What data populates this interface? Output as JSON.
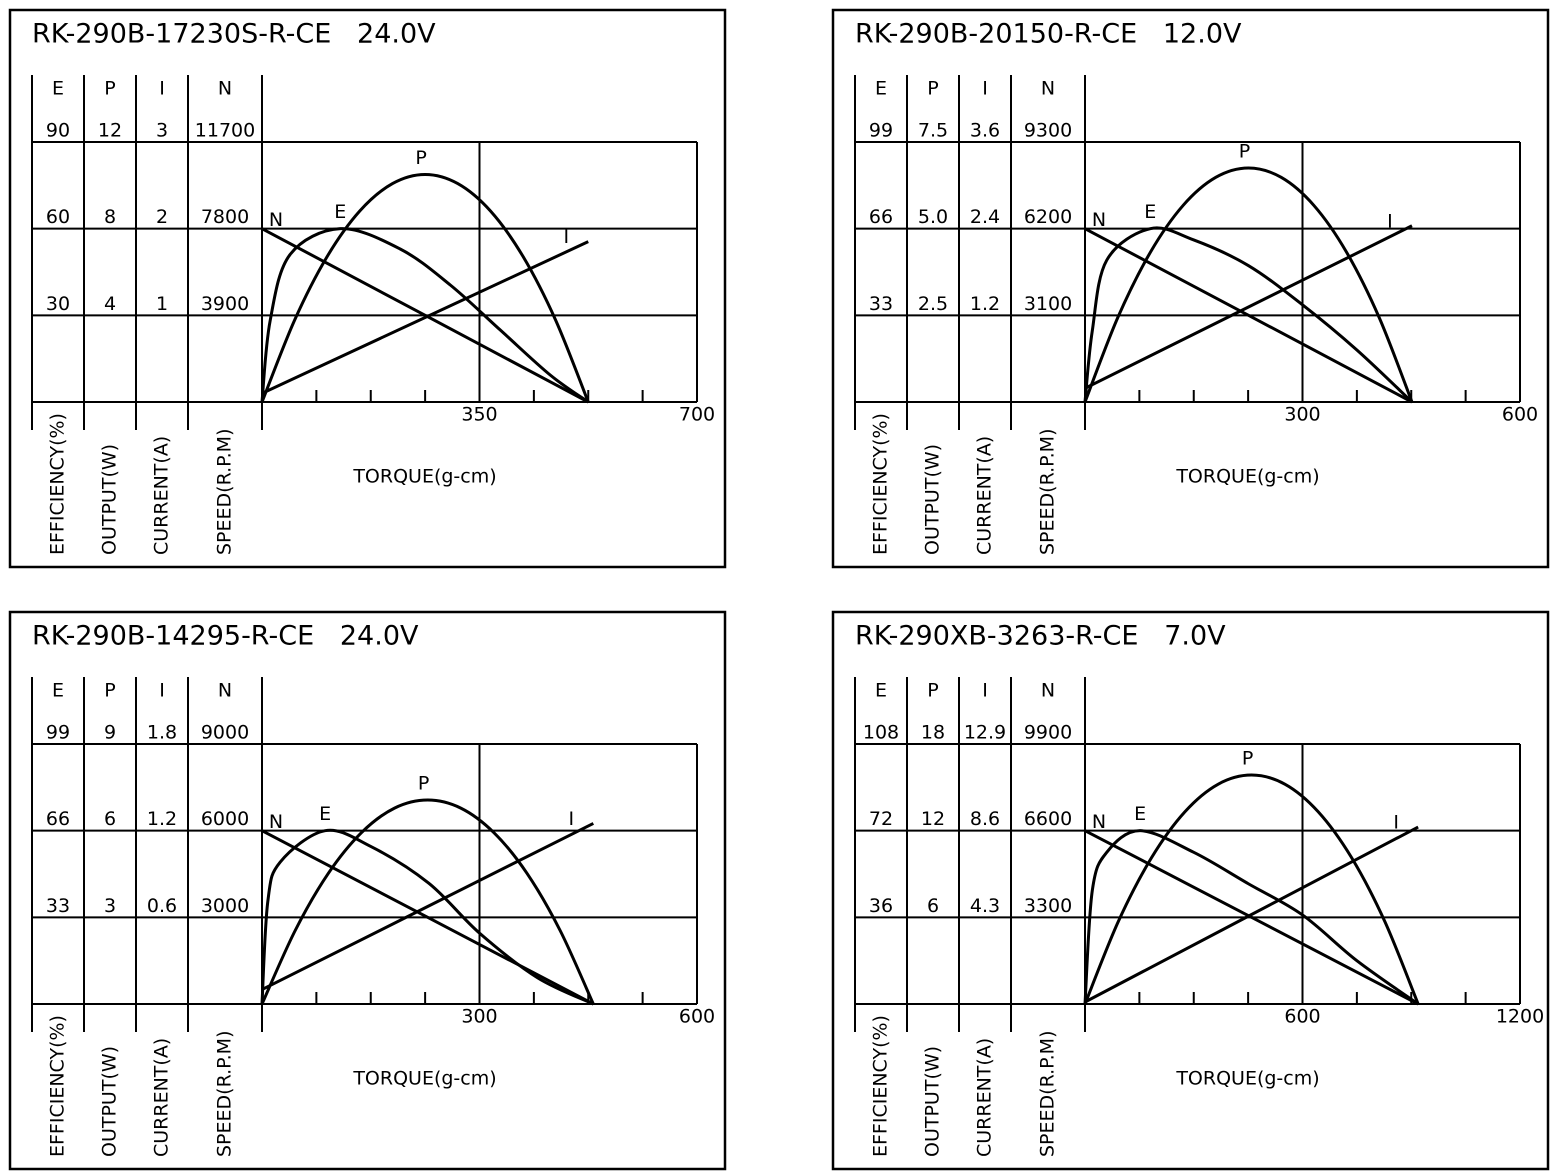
{
  "chart_data": [
    {
      "type": "line",
      "title": "RK-290B-17230S-R-CE   24.0V",
      "xlabel": "TORQUE(g-cm)",
      "xlim": [
        0,
        700
      ],
      "xticks": [
        350,
        700
      ],
      "axes": [
        {
          "name": "E",
          "label": "EFFICIENCY(%)",
          "ylim": [
            0,
            90
          ],
          "yticks": [
            30,
            60,
            90
          ]
        },
        {
          "name": "P",
          "label": "OUTPUT(W)",
          "ylim": [
            0,
            12
          ],
          "yticks": [
            4,
            8,
            12
          ]
        },
        {
          "name": "I",
          "label": "CURRENT(A)",
          "ylim": [
            0,
            3
          ],
          "yticks": [
            1,
            2,
            3
          ]
        },
        {
          "name": "N",
          "label": "SPEED(R.P.M)",
          "ylim": [
            0,
            11700
          ],
          "yticks": [
            3900,
            7800,
            11700
          ]
        }
      ],
      "series": [
        {
          "name": "N",
          "x": [
            0,
            525
          ],
          "values": [
            7800,
            0
          ]
        },
        {
          "name": "I",
          "x": [
            0,
            525
          ],
          "values": [
            0.1,
            1.85
          ]
        },
        {
          "name": "E",
          "x": [
            0,
            13,
            45,
            126,
            222,
            303,
            383,
            464,
            525
          ],
          "values": [
            0,
            28,
            51,
            60,
            53,
            40.5,
            25,
            9.3,
            0
          ]
        },
        {
          "name": "P",
          "x": [
            0,
            52.5,
            105,
            157.5,
            210,
            262.5,
            315,
            367.5,
            420,
            472.5,
            525
          ],
          "values": [
            0,
            3.78,
            6.72,
            8.82,
            10.08,
            10.5,
            10.08,
            8.82,
            6.72,
            3.78,
            0
          ]
        }
      ]
    },
    {
      "type": "line",
      "title": "RK-290B-20150-R-CE   12.0V",
      "xlabel": "TORQUE(g-cm)",
      "xlim": [
        0,
        600
      ],
      "xticks": [
        300,
        600
      ],
      "axes": [
        {
          "name": "E",
          "label": "EFFICIENCY(%)",
          "ylim": [
            0,
            99
          ],
          "yticks": [
            33,
            66,
            99
          ]
        },
        {
          "name": "P",
          "label": "OUTPUT(W)",
          "ylim": [
            0,
            7.5
          ],
          "yticks": [
            2.5,
            {
              "value": 5,
              "label": "5.0"
            },
            7.5
          ]
        },
        {
          "name": "I",
          "label": "CURRENT(A)",
          "ylim": [
            0,
            3.6
          ],
          "yticks": [
            1.2,
            2.4,
            3.6
          ]
        },
        {
          "name": "N",
          "label": "SPEED(R.P.M)",
          "ylim": [
            0,
            9300
          ],
          "yticks": [
            3100,
            6200,
            9300
          ]
        }
      ],
      "series": [
        {
          "name": "N",
          "x": [
            0,
            451
          ],
          "values": [
            6200,
            0
          ]
        },
        {
          "name": "I",
          "x": [
            0,
            451
          ],
          "values": [
            0.19,
            2.44
          ]
        },
        {
          "name": "E",
          "x": [
            0,
            10,
            30,
            90,
            150,
            225,
            300,
            375,
            451
          ],
          "values": [
            0,
            27,
            54,
            66,
            61.7,
            52,
            37,
            19.8,
            0
          ]
        },
        {
          "name": "P",
          "x": [
            0,
            45.1,
            90.2,
            135.3,
            180.4,
            225.5,
            270.6,
            315.7,
            360.8,
            405.9,
            451
          ],
          "values": [
            0,
            2.43,
            4.32,
            5.67,
            6.48,
            6.75,
            6.48,
            5.67,
            4.32,
            2.43,
            0
          ]
        }
      ]
    },
    {
      "type": "line",
      "title": "RK-290B-14295-R-CE   24.0V",
      "xlabel": "TORQUE(g-cm)",
      "xlim": [
        0,
        600
      ],
      "xticks": [
        300,
        600
      ],
      "axes": [
        {
          "name": "E",
          "label": "EFFICIENCY(%)",
          "ylim": [
            0,
            99
          ],
          "yticks": [
            33,
            66,
            99
          ]
        },
        {
          "name": "P",
          "label": "OUTPUT(W)",
          "ylim": [
            0,
            9
          ],
          "yticks": [
            3,
            6,
            9
          ]
        },
        {
          "name": "I",
          "label": "CURRENT(A)",
          "ylim": [
            0,
            1.8
          ],
          "yticks": [
            0.6,
            1.2,
            1.8
          ]
        },
        {
          "name": "N",
          "label": "SPEED(R.P.M)",
          "ylim": [
            0,
            9000
          ],
          "yticks": [
            3000,
            6000,
            9000
          ]
        }
      ],
      "series": [
        {
          "name": "N",
          "x": [
            0,
            457
          ],
          "values": [
            6000,
            0
          ]
        },
        {
          "name": "I",
          "x": [
            0,
            457
          ],
          "values": [
            0.1,
            1.25
          ]
        },
        {
          "name": "E",
          "x": [
            0,
            8,
            25,
            87,
            150,
            230,
            300,
            380,
            457
          ],
          "values": [
            0,
            39,
            54,
            66,
            60,
            46,
            27,
            10,
            0
          ]
        },
        {
          "name": "P",
          "x": [
            0,
            45.7,
            91.4,
            137.1,
            182.8,
            228.5,
            274.2,
            319.9,
            365.6,
            411.3,
            457
          ],
          "values": [
            0,
            2.54,
            4.52,
            5.93,
            6.78,
            7.06,
            6.78,
            5.93,
            4.52,
            2.54,
            0
          ]
        }
      ]
    },
    {
      "type": "line",
      "title": "RK-290XB-3263-R-CE   7.0V",
      "xlabel": "TORQUE(g-cm)",
      "xlim": [
        0,
        1200
      ],
      "xticks": [
        600,
        1200
      ],
      "axes": [
        {
          "name": "E",
          "label": "EFFICIENCY(%)",
          "ylim": [
            0,
            108
          ],
          "yticks": [
            36,
            72,
            108
          ]
        },
        {
          "name": "P",
          "label": "OUTPUT(W)",
          "ylim": [
            0,
            18
          ],
          "yticks": [
            6,
            12,
            18
          ]
        },
        {
          "name": "I",
          "label": "CURRENT(A)",
          "ylim": [
            0,
            12.9
          ],
          "yticks": [
            4.3,
            8.6,
            12.9
          ]
        },
        {
          "name": "N",
          "label": "SPEED(R.P.M)",
          "ylim": [
            0,
            9900
          ],
          "yticks": [
            3300,
            6600,
            9900
          ]
        }
      ],
      "series": [
        {
          "name": "N",
          "x": [
            0,
            919
          ],
          "values": [
            6600,
            0
          ]
        },
        {
          "name": "I",
          "x": [
            0,
            919
          ],
          "values": [
            0.1,
            8.78
          ]
        },
        {
          "name": "E",
          "x": [
            0,
            20,
            60,
            152,
            300,
            450,
            600,
            750,
            919
          ],
          "values": [
            0,
            47,
            63,
            72,
            63,
            50,
            37,
            18,
            0
          ]
        },
        {
          "name": "P",
          "x": [
            0,
            91.9,
            183.8,
            275.7,
            367.6,
            459.5,
            551.4,
            643.3,
            735.2,
            827.1,
            919
          ],
          "values": [
            0,
            5.71,
            10.14,
            13.31,
            15.22,
            15.85,
            15.22,
            13.31,
            10.14,
            5.71,
            0
          ]
        }
      ]
    }
  ]
}
